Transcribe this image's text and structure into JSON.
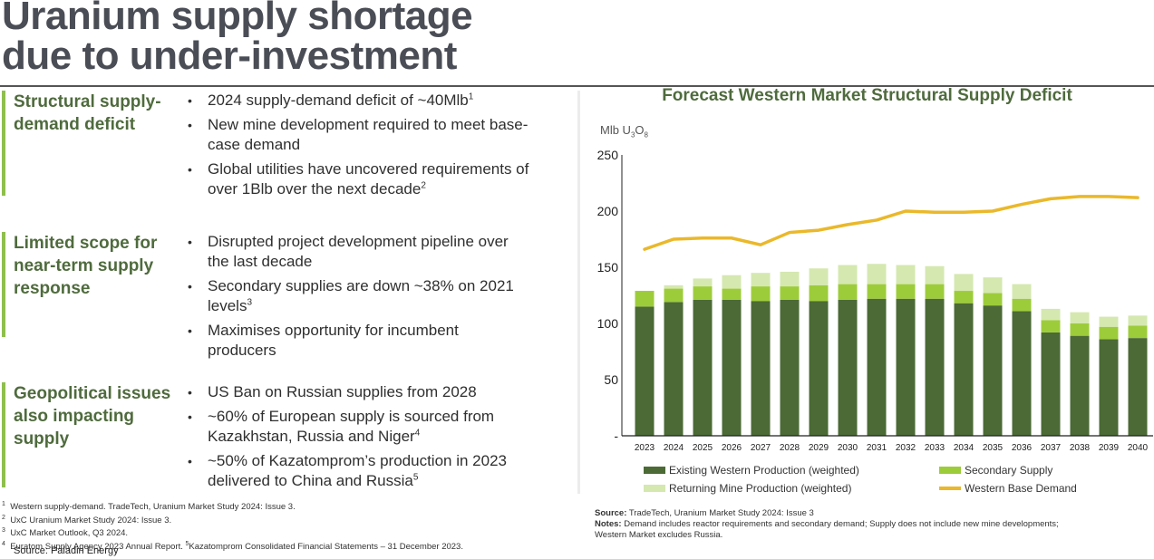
{
  "title": {
    "line1": "Uranium supply shortage",
    "line2": "due to under-investment"
  },
  "sections": [
    {
      "heading": "Structural supply-demand deficit",
      "bullets": [
        {
          "text": "2024 supply-demand deficit of ~40Mlb",
          "sup": "1"
        },
        {
          "text": "New mine development required to meet base-case demand",
          "sup": ""
        },
        {
          "text": "Global utilities have uncovered requirements of over 1Blb over the next decade",
          "sup": "2"
        }
      ]
    },
    {
      "heading": "Limited scope for near-term supply response",
      "bullets": [
        {
          "text": "Disrupted project development pipeline over the last decade",
          "sup": ""
        },
        {
          "text": "Secondary supplies are down ~38% on 2021 levels",
          "sup": "3"
        },
        {
          "text": "Maximises opportunity for incumbent producers",
          "sup": ""
        }
      ]
    },
    {
      "heading": "Geopolitical issues also impacting supply",
      "bullets": [
        {
          "text": "US Ban on Russian supplies from 2028",
          "sup": ""
        },
        {
          "text": "~60% of European supply is sourced from Kazakhstan, Russia and Niger",
          "sup": "4"
        },
        {
          "text": "~50% of Kazatomprom’s production in 2023 delivered to China and Russia",
          "sup": "5"
        }
      ]
    }
  ],
  "footnotes": [
    {
      "num": "1",
      "text": "Western supply-demand. TradeTech, Uranium Market Study 2024: Issue 3."
    },
    {
      "num": "2",
      "text": "UxC Uranium Market Study 2024: Issue 3."
    },
    {
      "num": "3",
      "text": "UxC  Market Outlook, Q3 2024."
    },
    {
      "num": "4",
      "text": "Euratom Supply Agency 2023 Annual Report. ",
      "num2": "5",
      "text2": "Kazatomprom Consolidated Financial Statements – 31 December 2023."
    }
  ],
  "source_left": "Source: Paladin Energy",
  "chart_notes": {
    "source_label": "Source:",
    "source_text": " TradeTech, Uranium Market Study 2024: Issue 3",
    "notes_label": "Notes:",
    "notes_text": " Demand includes reactor requirements and secondary demand;  Supply does not include new mine developments;",
    "notes_text2": "Western Market excludes Russia."
  },
  "colors": {
    "existing": "#4b6a35",
    "secondary": "#9dcc3a",
    "returning": "#d5e8b0",
    "demand": "#eab82a",
    "heading_green": "#4f6b3d",
    "accent_bar": "#8fbf4d"
  },
  "chart_data": {
    "type": "bar",
    "stacked": true,
    "title": "Forecast Western Market Structural Supply Deficit",
    "ylabel": "Mlb U3O8",
    "ylabel_main": "Mlb U",
    "ylabel_sub1": "3",
    "ylabel_mid": "O",
    "ylabel_sub2": "8",
    "xlabel": "",
    "ylim": [
      0,
      250
    ],
    "yticks": [
      0,
      50,
      100,
      150,
      200,
      250
    ],
    "ytick_labels": [
      "-",
      "50",
      "100",
      "150",
      "200",
      "250"
    ],
    "grid": false,
    "legend_position": "bottom",
    "categories": [
      "2023",
      "2024",
      "2025",
      "2026",
      "2027",
      "2028",
      "2029",
      "2030",
      "2031",
      "2032",
      "2033",
      "2034",
      "2035",
      "2036",
      "2037",
      "2038",
      "2039",
      "2040"
    ],
    "series": [
      {
        "name": "Existing Western Production (weighted)",
        "type": "bar",
        "values": [
          115,
          119,
          121,
          121,
          120,
          121,
          120,
          121,
          122,
          122,
          122,
          118,
          116,
          111,
          92,
          89,
          86,
          87
        ]
      },
      {
        "name": "Secondary Supply",
        "type": "bar",
        "values": [
          14,
          12,
          12,
          10,
          13,
          12,
          14,
          14,
          13,
          13,
          13,
          11,
          11,
          11,
          11,
          11,
          11,
          11
        ]
      },
      {
        "name": "Returning Mine Production (weighted)",
        "type": "bar",
        "values": [
          0,
          3,
          7,
          12,
          12,
          13,
          15,
          17,
          18,
          17,
          16,
          15,
          14,
          13,
          10,
          10,
          9,
          9
        ]
      },
      {
        "name": "Western Base Demand",
        "type": "line",
        "values": [
          166,
          175,
          176,
          176,
          170,
          181,
          183,
          188,
          192,
          200,
          199,
          199,
          200,
          206,
          211,
          213,
          213,
          212
        ]
      }
    ]
  }
}
